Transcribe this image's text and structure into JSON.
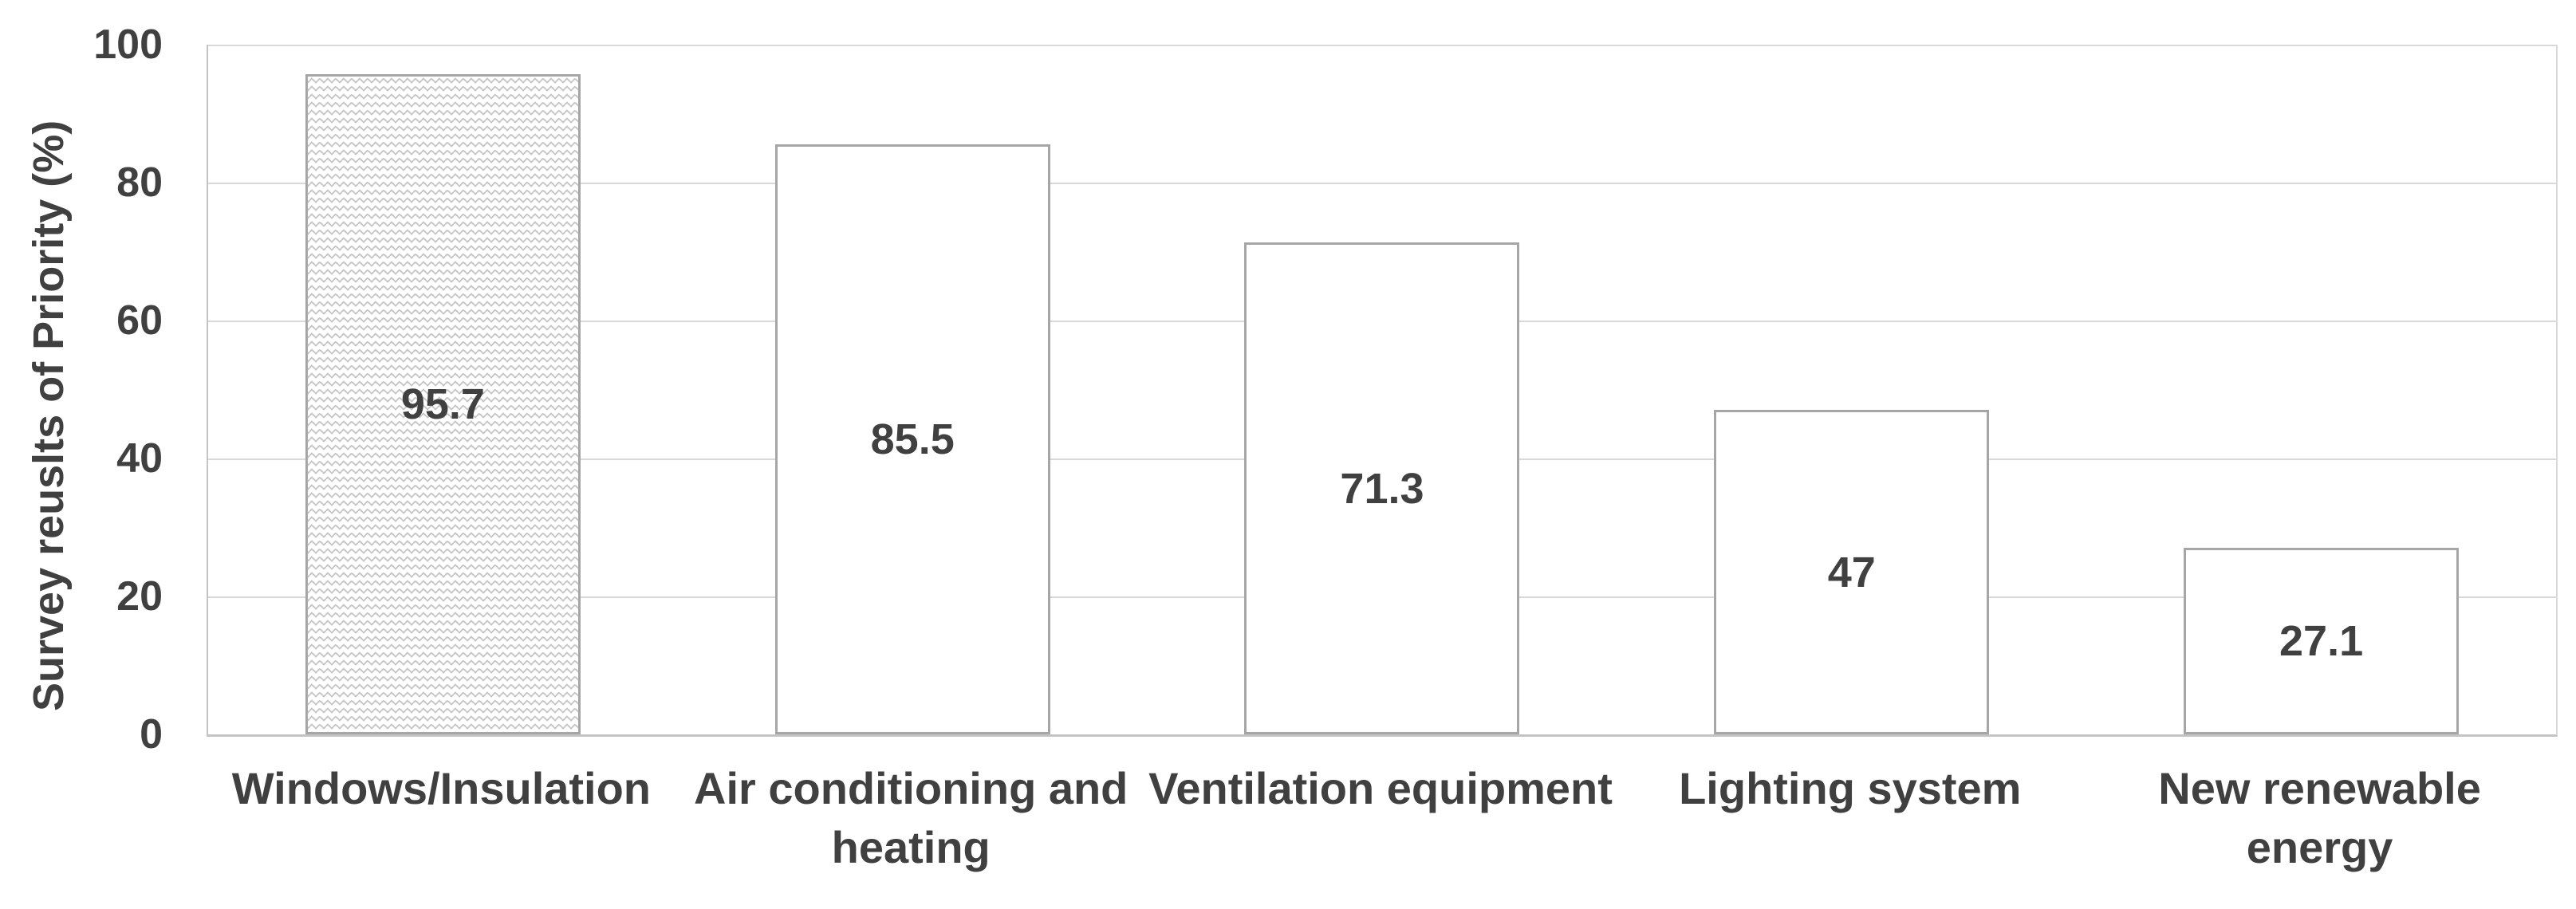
{
  "chart_data": {
    "type": "bar",
    "title": "",
    "xlabel": "",
    "ylabel": "Survey reuslts of Priority (%)",
    "ylim": [
      0,
      100
    ],
    "yticks": [
      100,
      80,
      60,
      40,
      20,
      0
    ],
    "grid": "horizontal-major",
    "legend": "none",
    "categories": [
      "Windows/Insulation",
      "Air conditioning and heating",
      "Ventilation equipment",
      "Lighting system",
      "New renewable energy"
    ],
    "category_lines": [
      [
        "Windows/Insulation"
      ],
      [
        "Air conditioning and",
        "heating"
      ],
      [
        "Ventilation equipment"
      ],
      [
        "Lighting system"
      ],
      [
        "New renewable",
        "energy"
      ]
    ],
    "values": [
      95.7,
      85.5,
      71.3,
      47,
      27.1
    ],
    "value_labels": [
      "95.7",
      "85.5",
      "71.3",
      "47",
      "27.1"
    ],
    "value_label_position": "inside-center",
    "bar_fills": [
      "zigzag-pattern",
      "white",
      "white",
      "white",
      "white"
    ]
  },
  "colors": {
    "background": "#ffffff",
    "text": "#404040",
    "gridline": "#d9d9d9",
    "axis_line": "#c4c4c4",
    "bar_border": "#a6a6a6",
    "pattern_stroke": "#c6c6c6"
  }
}
